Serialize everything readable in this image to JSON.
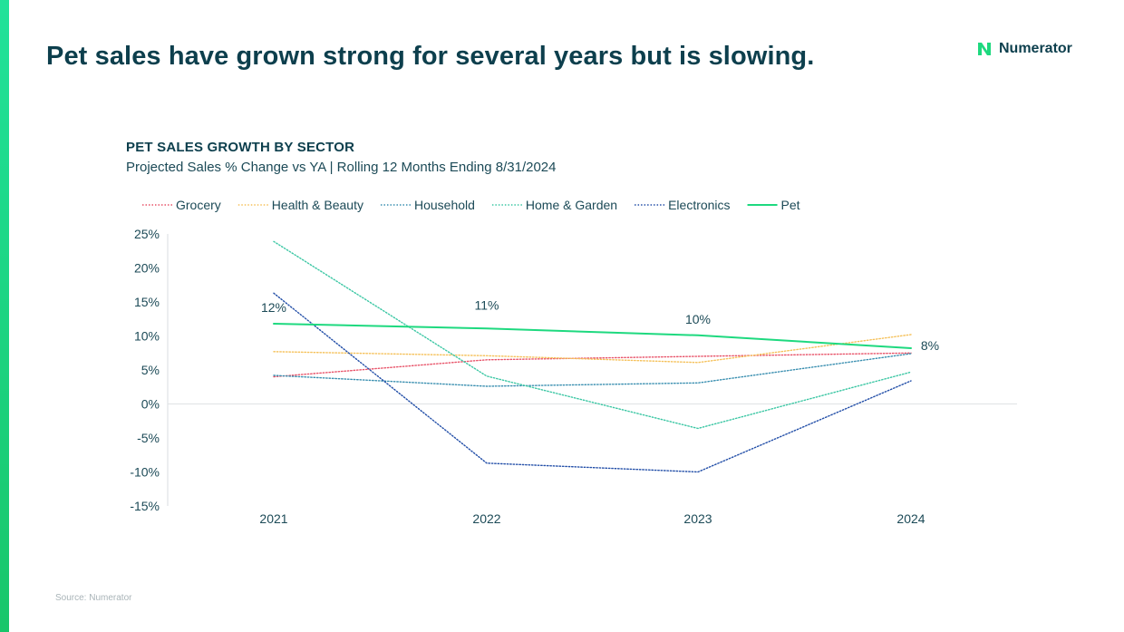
{
  "header": {
    "title": "Pet sales have grown strong for several years but is slowing.",
    "logo_text": "Numerator"
  },
  "colors": {
    "accent": "#1ed97f",
    "title": "#0d3f4d"
  },
  "footer": {
    "source": "Source: Numerator"
  },
  "chart_data": {
    "type": "line",
    "title": "PET SALES GROWTH BY SECTOR",
    "subtitle": "Projected Sales % Change vs YA | Rolling 12 Months Ending 8/31/2024",
    "x": [
      "2021",
      "2022",
      "2023",
      "2024"
    ],
    "ylim": [
      -15,
      25
    ],
    "yticks": [
      25,
      20,
      15,
      10,
      5,
      0,
      -5,
      -10,
      -15
    ],
    "ytick_labels": [
      "25%",
      "20%",
      "15%",
      "10%",
      "5%",
      "0%",
      "-5%",
      "-10%",
      "-15%"
    ],
    "grid": false,
    "legend_position": "top",
    "series": [
      {
        "name": "Grocery",
        "values": [
          4.0,
          6.5,
          7.0,
          7.5
        ],
        "color": "#e8546a",
        "style": "dotted"
      },
      {
        "name": "Health & Beauty",
        "values": [
          7.7,
          7.1,
          6.1,
          10.2
        ],
        "color": "#f5c15a",
        "style": "dotted"
      },
      {
        "name": "Household",
        "values": [
          4.2,
          2.6,
          3.1,
          7.4
        ],
        "color": "#3a8fb0",
        "style": "dotted"
      },
      {
        "name": "Home & Garden",
        "values": [
          23.9,
          4.1,
          -3.6,
          4.7
        ],
        "color": "#3cc7a4",
        "style": "dotted"
      },
      {
        "name": "Electronics",
        "values": [
          16.3,
          -8.7,
          -10.0,
          3.4
        ],
        "color": "#234fa8",
        "style": "dotted"
      },
      {
        "name": "Pet",
        "values": [
          11.8,
          11.1,
          10.1,
          8.2
        ],
        "color": "#1ed97f",
        "style": "solid",
        "data_labels": [
          "12%",
          "11%",
          "10%",
          "8%"
        ]
      }
    ]
  }
}
